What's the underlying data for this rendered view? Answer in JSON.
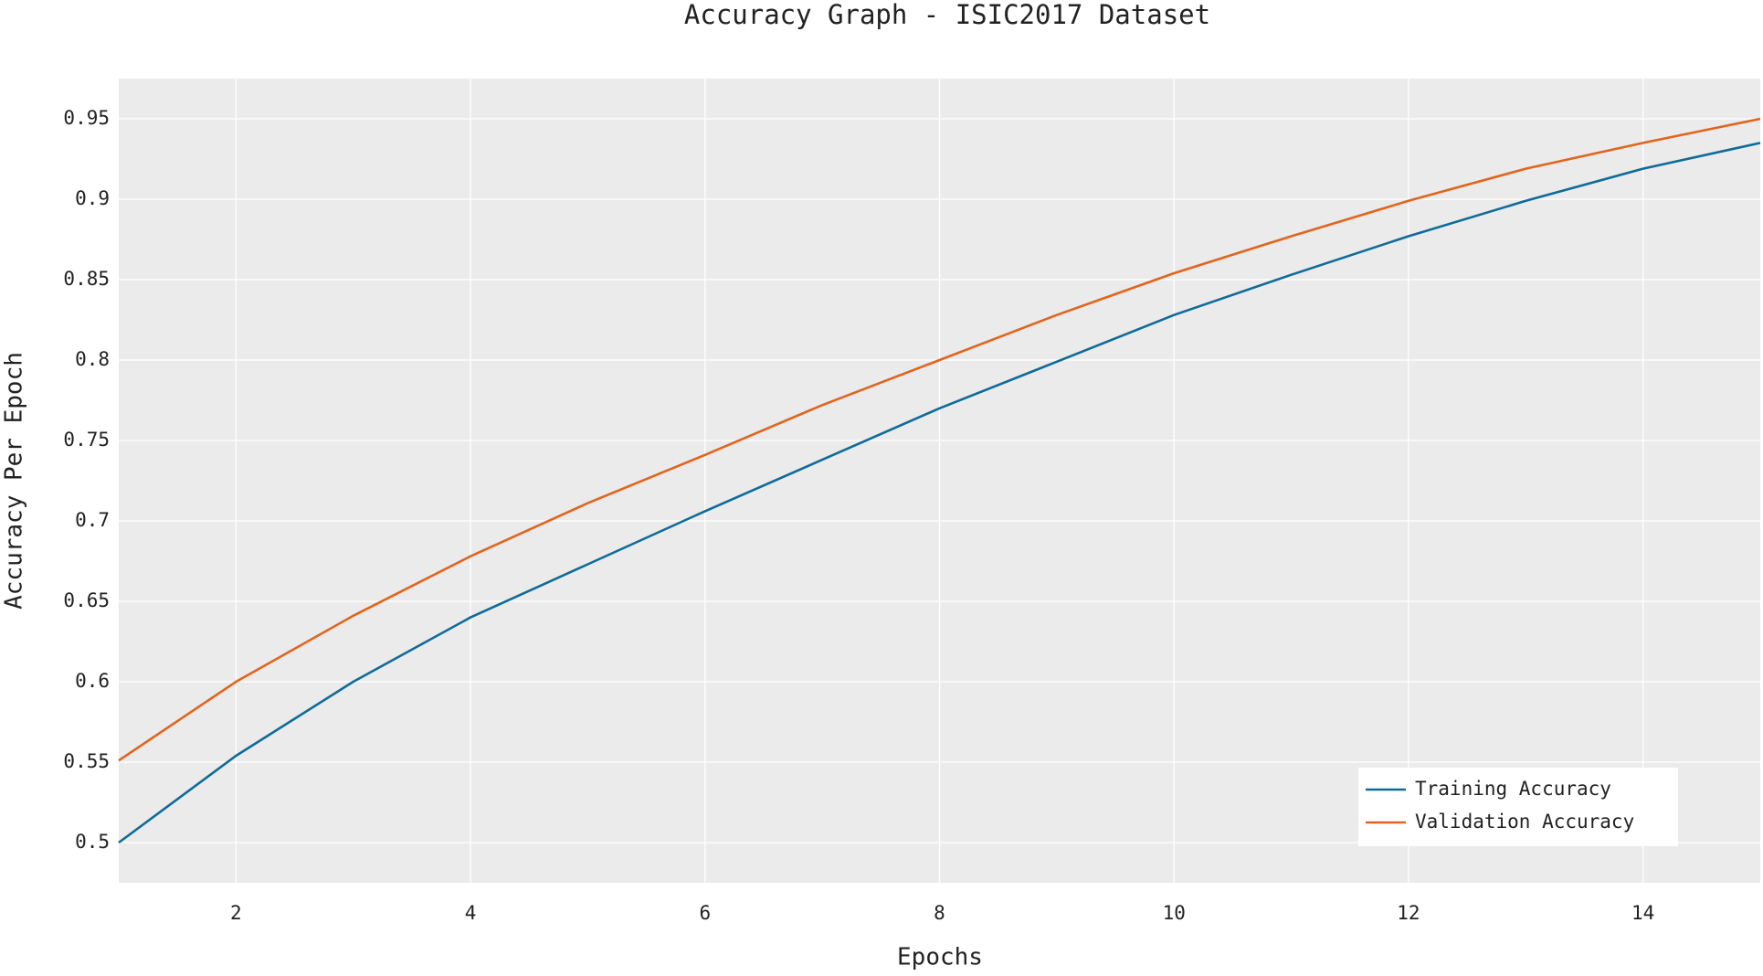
{
  "chart_data": {
    "type": "line",
    "title": "Accuracy Graph - ISIC2017 Dataset",
    "x_label": "Epochs",
    "y_label": "Accuracy Per Epoch",
    "x": [
      1,
      2,
      3,
      4,
      5,
      6,
      7,
      8,
      9,
      10,
      11,
      12,
      13,
      14,
      15
    ],
    "series": [
      {
        "name": "Training Accuracy",
        "color": "#0f6b9a",
        "values": [
          0.5,
          0.554,
          0.6,
          0.64,
          0.673,
          0.706,
          0.738,
          0.77,
          0.799,
          0.828,
          0.853,
          0.877,
          0.899,
          0.919,
          0.935
        ]
      },
      {
        "name": "Validation Accuracy",
        "color": "#e3641c",
        "values": [
          0.551,
          0.6,
          0.641,
          0.678,
          0.711,
          0.741,
          0.772,
          0.8,
          0.828,
          0.854,
          0.877,
          0.899,
          0.919,
          0.935,
          0.95
        ]
      }
    ],
    "xlim": [
      1,
      15
    ],
    "xticks": [
      2,
      4,
      6,
      8,
      10,
      12,
      14
    ],
    "ylim": [
      0.475,
      0.975
    ],
    "yticks": [
      0.5,
      0.55,
      0.6,
      0.65,
      0.7,
      0.75,
      0.8,
      0.85,
      0.9,
      0.95
    ],
    "grid": true,
    "legend": "lower right"
  }
}
